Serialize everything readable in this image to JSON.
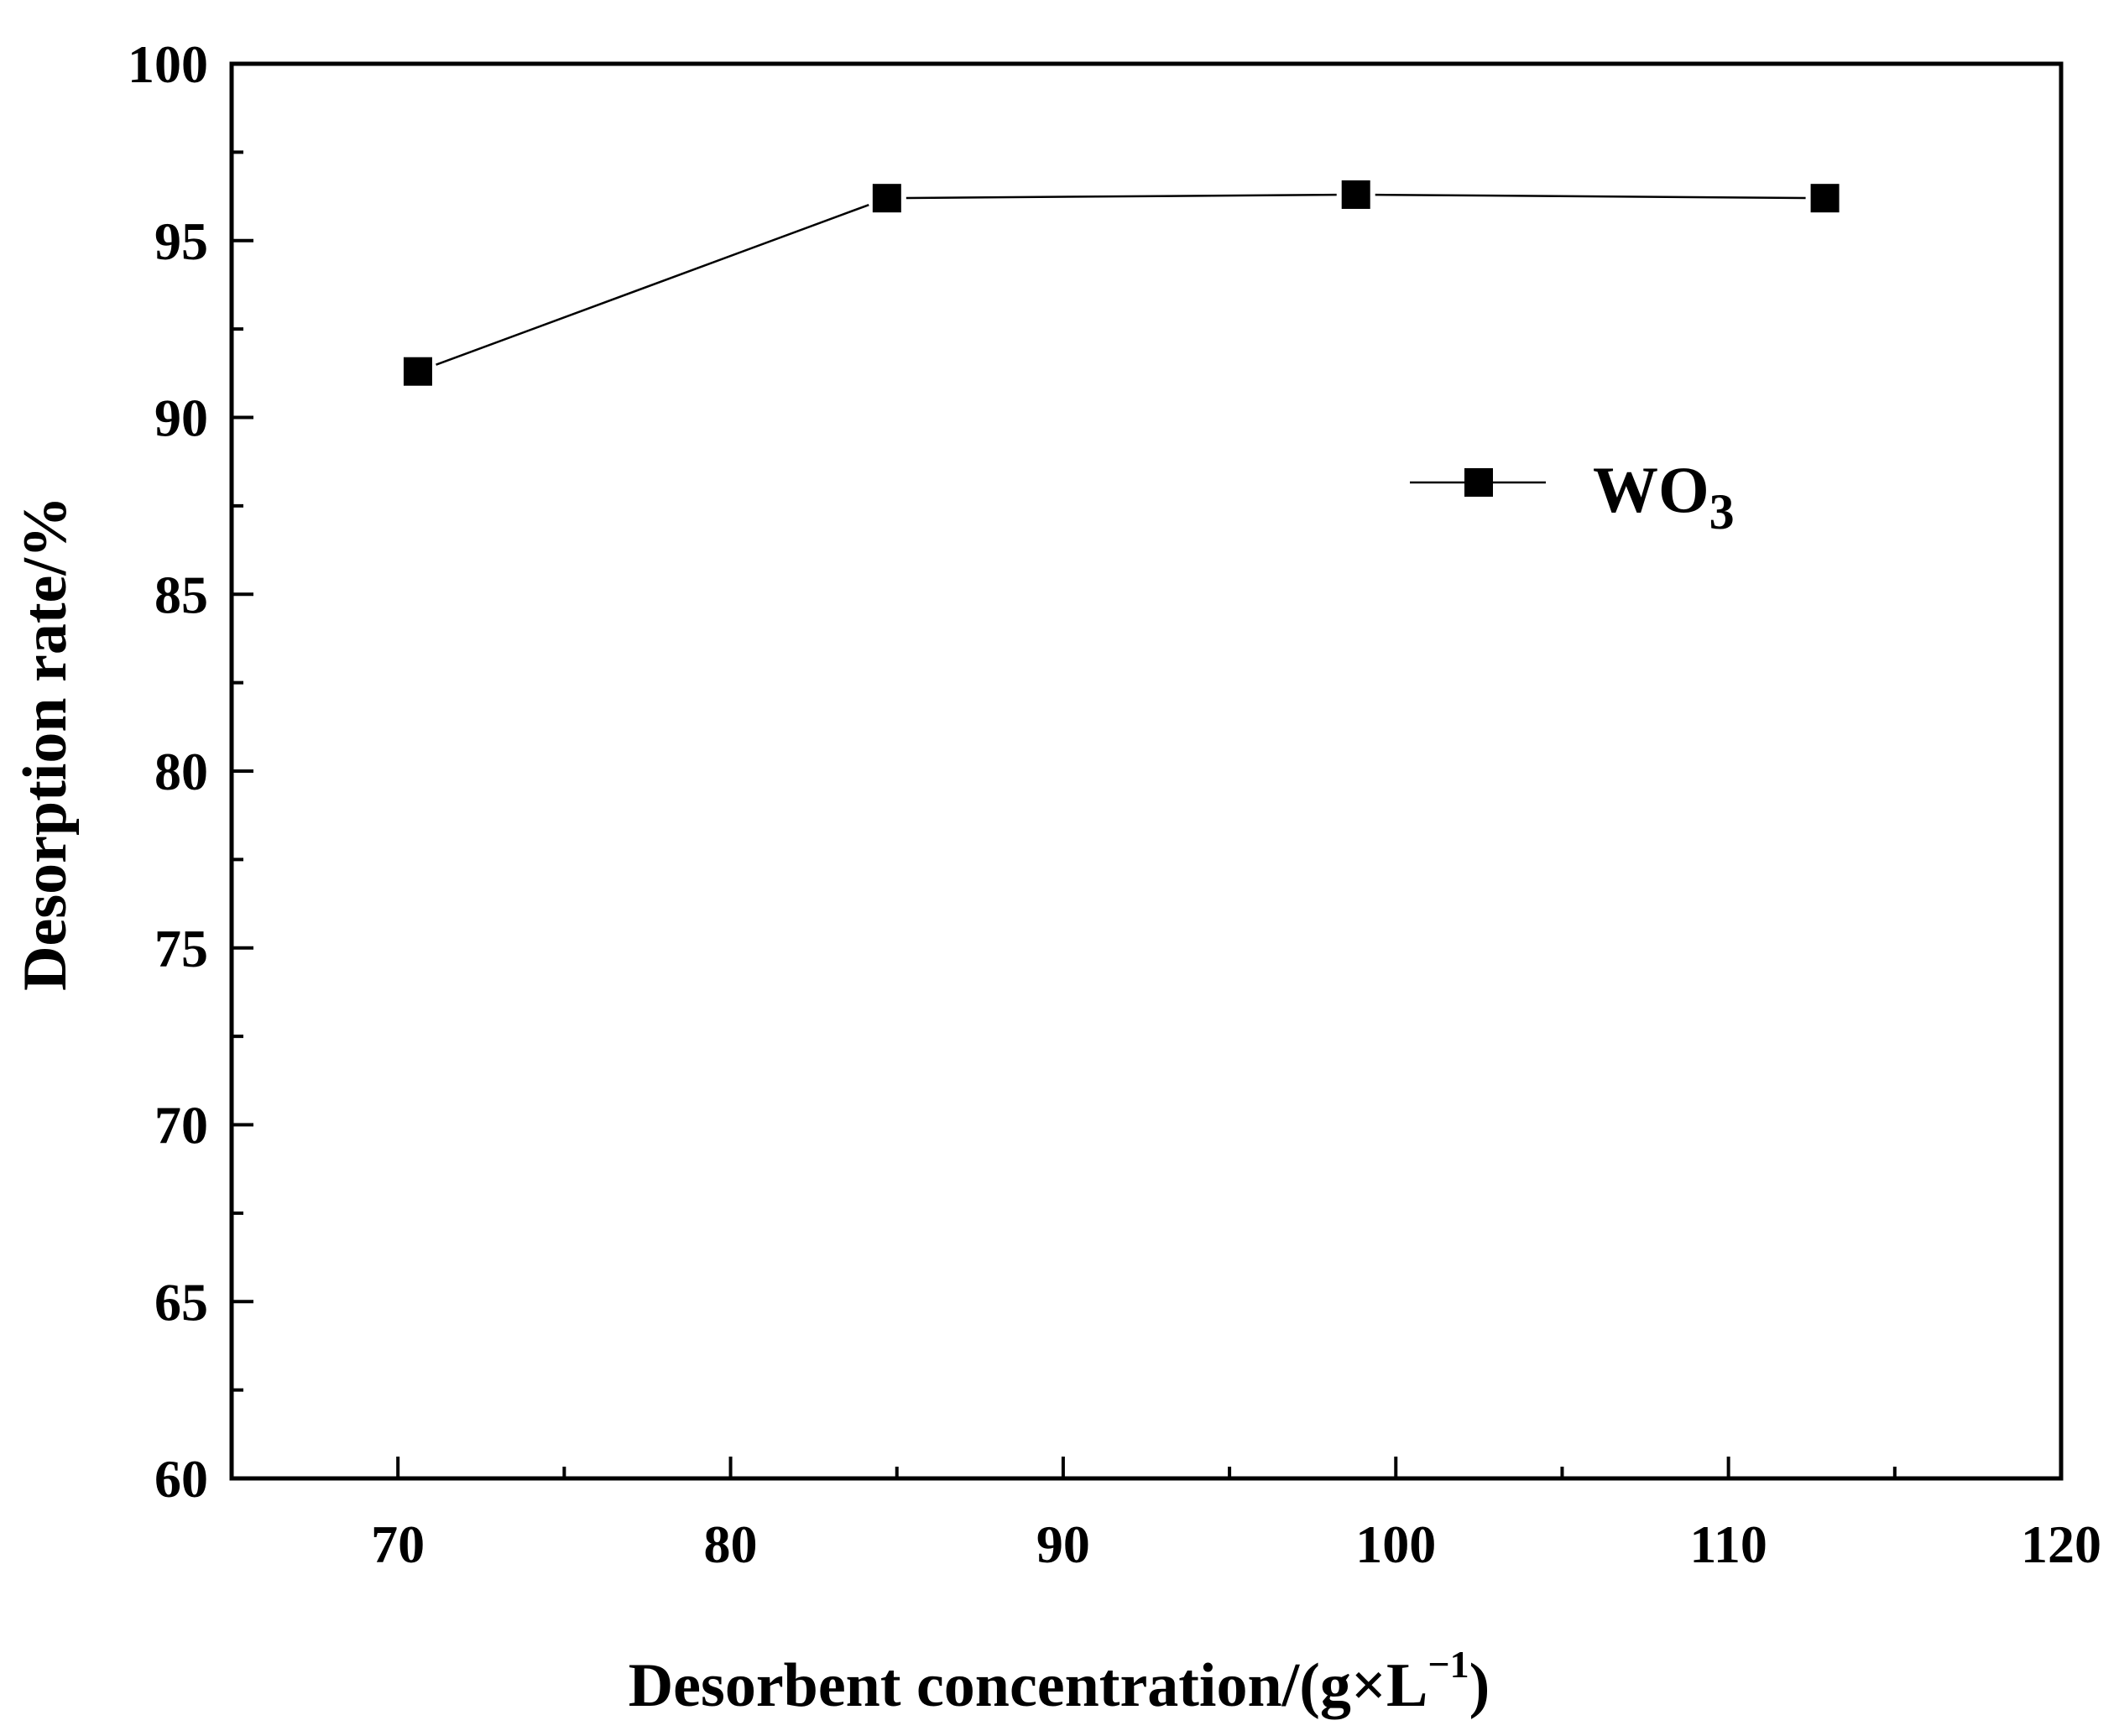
{
  "chart_data": {
    "type": "line",
    "title": "",
    "xlabel": "Desorbent  concentration/(g×L",
    "xlabel_sup": "−1",
    "xlabel_end": ")",
    "ylabel": "Desorption rate/%",
    "xlim": [
      65,
      120
    ],
    "ylim": [
      60,
      100
    ],
    "x_ticks": [
      70,
      80,
      90,
      100,
      110,
      120
    ],
    "x_minor_ticks": [
      75,
      85,
      95,
      105,
      115
    ],
    "y_ticks": [
      60,
      65,
      70,
      75,
      80,
      85,
      90,
      95,
      100
    ],
    "y_minor_ticks": [
      62.5,
      67.5,
      72.5,
      77.5,
      82.5,
      87.5,
      92.5,
      97.5
    ],
    "grid": false,
    "legend_position": "right",
    "series": [
      {
        "name": "WO",
        "name_sub": "3",
        "marker": "square",
        "color": "#000000",
        "x": [
          70.6,
          84.7,
          98.8,
          112.9
        ],
        "y": [
          91.3,
          96.2,
          96.3,
          96.2
        ]
      }
    ]
  }
}
